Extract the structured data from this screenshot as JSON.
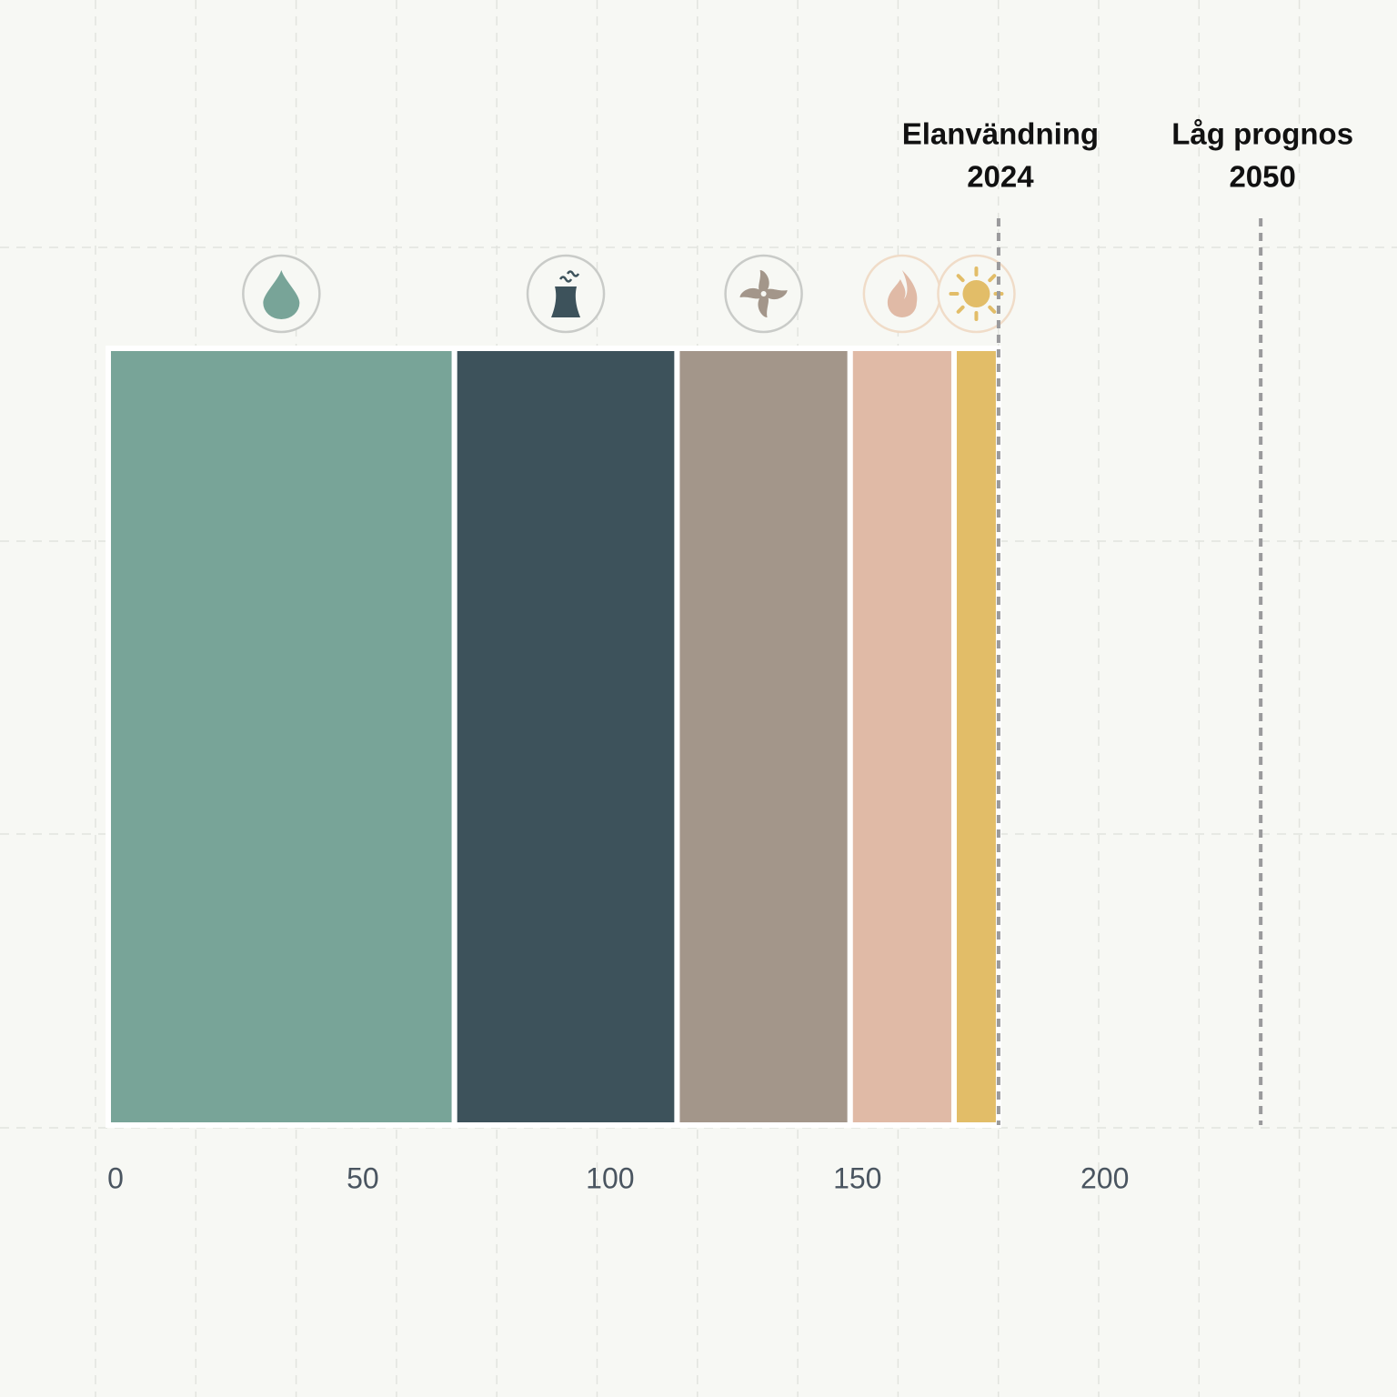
{
  "chart_data": {
    "type": "stacked-bar-horizontal",
    "values": [
      70,
      45,
      35,
      21,
      9
    ],
    "colors": [
      "#78a498",
      "#3d525b",
      "#a3968a",
      "#e0baa6",
      "#e2bd68"
    ],
    "xlim": [
      0,
      260
    ],
    "xticks": [
      0,
      50,
      100,
      150,
      200
    ],
    "markers": [
      {
        "value": 180,
        "label": [
          "Elanvändning",
          "2024"
        ]
      },
      {
        "value": 233,
        "label": [
          "Låg prognos",
          "2050"
        ]
      }
    ]
  }
}
